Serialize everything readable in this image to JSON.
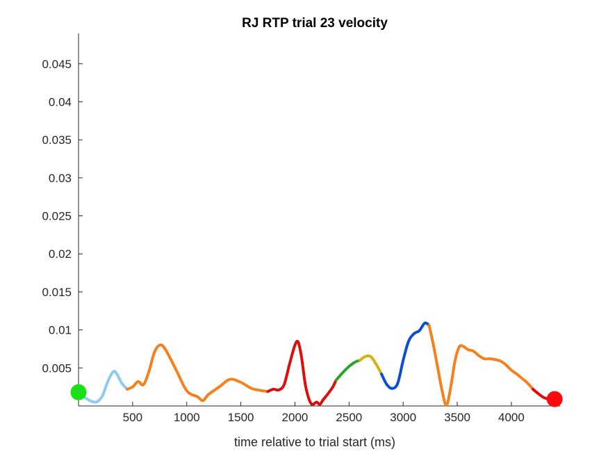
{
  "chart_data": {
    "type": "line",
    "title": "RJ  RTP trial 23 velocity",
    "xlabel": "time relative to trial start (ms)",
    "ylabel": "",
    "xlim": [
      0,
      4450
    ],
    "ylim": [
      0,
      0.049
    ],
    "xticks": [
      500,
      1000,
      1500,
      2000,
      2500,
      3000,
      3500,
      4000
    ],
    "xtick_labels": [
      "500",
      "1000",
      "1500",
      "2000",
      "2500",
      "3000",
      "3500",
      "4000"
    ],
    "yticks": [
      0.005,
      0.01,
      0.015,
      0.02,
      0.025,
      0.03,
      0.035,
      0.04,
      0.045
    ],
    "ytick_labels": [
      "0.005",
      "0.01",
      "0.015",
      "0.02",
      "0.025",
      "0.03",
      "0.035",
      "0.04",
      "0.045"
    ],
    "grid": false,
    "series": [
      {
        "color": "#8ecbf0",
        "x": [
          0,
          80,
          160,
          220,
          270,
          320,
          350,
          400,
          450
        ],
        "y": [
          0.0018,
          0.0009,
          0.0005,
          0.0013,
          0.0032,
          0.0045,
          0.0043,
          0.003,
          0.0022
        ]
      },
      {
        "color": "#f77f1c",
        "x": [
          450,
          500,
          550,
          600,
          650,
          700,
          750,
          800,
          900,
          1000,
          1100,
          1150,
          1200,
          1300,
          1400,
          1500,
          1600,
          1700,
          1750
        ],
        "y": [
          0.0022,
          0.0025,
          0.0032,
          0.0028,
          0.0045,
          0.007,
          0.008,
          0.0075,
          0.0048,
          0.002,
          0.0012,
          0.0007,
          0.0015,
          0.0025,
          0.0035,
          0.0031,
          0.0023,
          0.002,
          0.0019
        ]
      },
      {
        "color": "#e00c0c",
        "x": [
          1750,
          1800,
          1850,
          1900,
          1950,
          2000,
          2030,
          2060,
          2100,
          2150,
          2200,
          2230,
          2260,
          2300,
          2350,
          2380
        ],
        "y": [
          0.0019,
          0.0022,
          0.0021,
          0.0028,
          0.0055,
          0.008,
          0.0084,
          0.0065,
          0.0025,
          0.0003,
          0.0005,
          0.0002,
          0.0008,
          0.0015,
          0.0025,
          0.0034
        ]
      },
      {
        "color": "#2aa32a",
        "x": [
          2380,
          2450,
          2500,
          2560,
          2600
        ],
        "y": [
          0.0034,
          0.0045,
          0.0052,
          0.0058,
          0.006
        ]
      },
      {
        "color": "#d4b20f",
        "x": [
          2600,
          2650,
          2700,
          2750,
          2800
        ],
        "y": [
          0.006,
          0.0065,
          0.0065,
          0.0055,
          0.0042
        ]
      },
      {
        "color": "#0b4ed6",
        "x": [
          2800,
          2850,
          2900,
          2950,
          3000,
          3050,
          3100,
          3150,
          3200,
          3240
        ],
        "y": [
          0.0042,
          0.0028,
          0.0023,
          0.003,
          0.006,
          0.0085,
          0.0095,
          0.0099,
          0.0109,
          0.0106
        ]
      },
      {
        "color": "#f77f1c",
        "x": [
          3240,
          3280,
          3320,
          3360,
          3400,
          3440,
          3480,
          3520,
          3560,
          3600,
          3650,
          3700,
          3750,
          3800,
          3850,
          3900,
          3950,
          4000,
          4050,
          4100,
          4150,
          4200
        ],
        "y": [
          0.0106,
          0.008,
          0.005,
          0.002,
          0.0001,
          0.0025,
          0.006,
          0.0078,
          0.0078,
          0.0074,
          0.0072,
          0.0066,
          0.0062,
          0.0062,
          0.0061,
          0.0059,
          0.0054,
          0.0047,
          0.0042,
          0.0036,
          0.003,
          0.0022
        ]
      },
      {
        "color": "#e00c0c",
        "x": [
          4200,
          4250,
          4300,
          4350,
          4400
        ],
        "y": [
          0.0022,
          0.0016,
          0.0011,
          0.0009,
          0.0009
        ]
      }
    ],
    "markers": [
      {
        "label": "start",
        "x": 0,
        "y": 0.0018,
        "color": "#1ae01a"
      },
      {
        "label": "end",
        "x": 4400,
        "y": 0.0009,
        "color": "#ff0a0a"
      }
    ]
  }
}
